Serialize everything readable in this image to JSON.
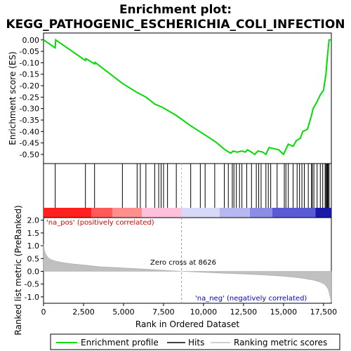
{
  "chart_data": {
    "type": "line",
    "title_line1": "Enrichment plot:",
    "title_line2": "KEGG_PATHOGENIC_ESCHERICHIA_COLI_INFECTION",
    "top_panel": {
      "ylabel": "Enrichment score (ES)",
      "ylim": [
        -0.54,
        0.03
      ],
      "yticks": [
        "0.00",
        "-0.05",
        "-0.10",
        "-0.15",
        "-0.20",
        "-0.25",
        "-0.30",
        "-0.35",
        "-0.40",
        "-0.45",
        "-0.50"
      ],
      "ytick_values": [
        0.0,
        -0.05,
        -0.1,
        -0.15,
        -0.2,
        -0.25,
        -0.3,
        -0.35,
        -0.4,
        -0.45,
        -0.5
      ],
      "series_color": "#00dd00",
      "es_curve": [
        [
          0,
          0.0
        ],
        [
          730,
          -0.035
        ],
        [
          760,
          0.0
        ],
        [
          2620,
          -0.09
        ],
        [
          2650,
          -0.082
        ],
        [
          3190,
          -0.105
        ],
        [
          3220,
          -0.098
        ],
        [
          4930,
          -0.19
        ],
        [
          5850,
          -0.23
        ],
        [
          6400,
          -0.25
        ],
        [
          6950,
          -0.28
        ],
        [
          7450,
          -0.295
        ],
        [
          8300,
          -0.33
        ],
        [
          9200,
          -0.375
        ],
        [
          10200,
          -0.42
        ],
        [
          10750,
          -0.445
        ],
        [
          11350,
          -0.48
        ],
        [
          11700,
          -0.495
        ],
        [
          11850,
          -0.485
        ],
        [
          12100,
          -0.49
        ],
        [
          12400,
          -0.485
        ],
        [
          12600,
          -0.49
        ],
        [
          12750,
          -0.48
        ],
        [
          13000,
          -0.49
        ],
        [
          13200,
          -0.5
        ],
        [
          13400,
          -0.485
        ],
        [
          13700,
          -0.49
        ],
        [
          13900,
          -0.5
        ],
        [
          14100,
          -0.47
        ],
        [
          14400,
          -0.475
        ],
        [
          14700,
          -0.48
        ],
        [
          15000,
          -0.5
        ],
        [
          15300,
          -0.455
        ],
        [
          15600,
          -0.465
        ],
        [
          15800,
          -0.44
        ],
        [
          16050,
          -0.43
        ],
        [
          16200,
          -0.4
        ],
        [
          16500,
          -0.39
        ],
        [
          16750,
          -0.33
        ],
        [
          16850,
          -0.3
        ],
        [
          17100,
          -0.27
        ],
        [
          17300,
          -0.24
        ],
        [
          17500,
          -0.22
        ],
        [
          17650,
          -0.15
        ],
        [
          17750,
          -0.07
        ],
        [
          17850,
          0.0
        ],
        [
          17990,
          0.0
        ]
      ]
    },
    "hits_panel": {
      "hit_positions": [
        730,
        2620,
        3190,
        4930,
        5850,
        6050,
        6400,
        6950,
        7200,
        7350,
        7500,
        7750,
        8300,
        9200,
        9800,
        10100,
        10700,
        11300,
        11550,
        11800,
        11900,
        12050,
        12250,
        12400,
        12700,
        13000,
        13300,
        13450,
        13600,
        13900,
        14050,
        14200,
        14600,
        15050,
        15150,
        15300,
        15600,
        15850,
        16000,
        16150,
        16300,
        16550,
        16750,
        16800,
        16900,
        17100,
        17300,
        17450,
        17600,
        17650,
        17700,
        17750,
        17800,
        17850
      ],
      "colorbar_segments": [
        {
          "from": 0,
          "to": 3000,
          "color": "#ff2020"
        },
        {
          "from": 3000,
          "to": 4300,
          "color": "#ff5a5a"
        },
        {
          "from": 4300,
          "to": 6150,
          "color": "#ff8f8f"
        },
        {
          "from": 6150,
          "to": 8626,
          "color": "#ffc0dc"
        },
        {
          "from": 8626,
          "to": 11000,
          "color": "#d8d8f8"
        },
        {
          "from": 11000,
          "to": 12900,
          "color": "#b8b8f0"
        },
        {
          "from": 12900,
          "to": 14300,
          "color": "#8c8ce4"
        },
        {
          "from": 14300,
          "to": 17000,
          "color": "#5a5ad4"
        },
        {
          "from": 17000,
          "to": 17990,
          "color": "#1a1aa8"
        }
      ]
    },
    "bottom_panel": {
      "ylabel": "Ranked list metric (PreRanked)",
      "xlabel": "Rank in Ordered Dataset",
      "xlim": [
        0,
        17990
      ],
      "ylim": [
        -1.25,
        2.1
      ],
      "xticks": [
        "0",
        "2,500",
        "5,000",
        "7,500",
        "10,000",
        "12,500",
        "15,000",
        "17,500"
      ],
      "xtick_values": [
        0,
        2500,
        5000,
        7500,
        10000,
        12500,
        15000,
        17500
      ],
      "yticks": [
        "2.0",
        "1.5",
        "1.0",
        "0.5",
        "0.0",
        "-0.5",
        "-1.0"
      ],
      "ytick_values": [
        2.0,
        1.5,
        1.0,
        0.5,
        0.0,
        -0.5,
        -1.0
      ],
      "metric_curve": [
        [
          0,
          1.05
        ],
        [
          60,
          0.8
        ],
        [
          150,
          0.65
        ],
        [
          300,
          0.52
        ],
        [
          500,
          0.45
        ],
        [
          800,
          0.39
        ],
        [
          1200,
          0.34
        ],
        [
          1800,
          0.29
        ],
        [
          2600,
          0.24
        ],
        [
          3500,
          0.18
        ],
        [
          5000,
          0.13
        ],
        [
          6500,
          0.08
        ],
        [
          8000,
          0.02
        ],
        [
          8626,
          0.0
        ],
        [
          10000,
          -0.04
        ],
        [
          11500,
          -0.08
        ],
        [
          13000,
          -0.12
        ],
        [
          14500,
          -0.17
        ],
        [
          15500,
          -0.22
        ],
        [
          16300,
          -0.28
        ],
        [
          16900,
          -0.35
        ],
        [
          17300,
          -0.42
        ],
        [
          17600,
          -0.52
        ],
        [
          17800,
          -0.7
        ],
        [
          17900,
          -0.95
        ],
        [
          17990,
          -1.2
        ]
      ],
      "pos_label": "'na_pos' (positively correlated)",
      "neg_label": "'na_neg' (negatively correlated)",
      "zero_cross_label": "Zero cross at 8626",
      "zero_cross": 8626,
      "pos_color": "#dd0000",
      "neg_color": "#0000dd"
    },
    "legend": {
      "items": [
        {
          "label": "Enrichment profile",
          "color": "#00dd00",
          "kind": "line"
        },
        {
          "label": "Hits",
          "color": "#000000",
          "kind": "line"
        },
        {
          "label": "Ranking metric scores",
          "color": "#c0c0c0",
          "kind": "line"
        }
      ]
    }
  }
}
